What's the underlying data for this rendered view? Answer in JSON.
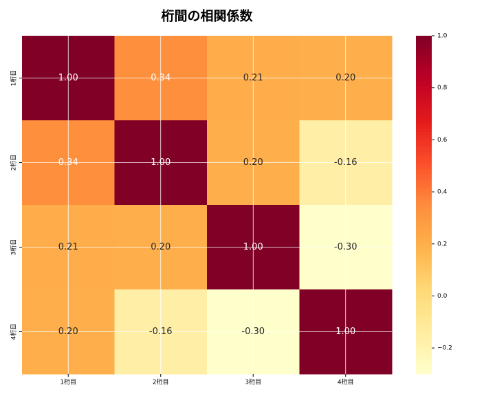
{
  "chart_data": {
    "type": "heatmap",
    "title": "桁間の相関係数",
    "categories": [
      "1桁目",
      "2桁目",
      "3桁目",
      "4桁目"
    ],
    "values": [
      [
        1.0,
        0.34,
        0.21,
        0.2
      ],
      [
        0.34,
        1.0,
        0.2,
        -0.16
      ],
      [
        0.21,
        0.2,
        1.0,
        -0.3
      ],
      [
        0.2,
        -0.16,
        -0.3,
        1.0
      ]
    ],
    "value_labels": [
      [
        "1.00",
        "0.34",
        "0.21",
        "0.20"
      ],
      [
        "0.34",
        "1.00",
        "0.20",
        "-0.16"
      ],
      [
        "0.21",
        "0.20",
        "1.00",
        "-0.30"
      ],
      [
        "0.20",
        "-0.16",
        "-0.30",
        "1.00"
      ]
    ],
    "colormap": "YlOrRd",
    "zlim": [
      -0.3,
      1.0
    ],
    "zticks": [
      {
        "value": -0.2,
        "label": "−0.2"
      },
      {
        "value": 0,
        "label": "0.0"
      },
      0.2,
      0.4,
      0.6,
      0.8,
      {
        "value": 1,
        "label": "1.0"
      }
    ],
    "grid": true
  }
}
